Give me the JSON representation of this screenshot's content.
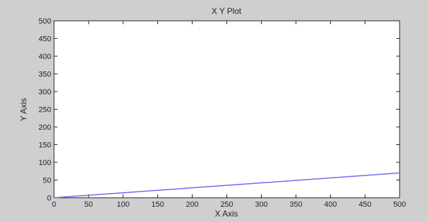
{
  "chart_data": {
    "type": "line",
    "title": "X Y Plot",
    "xlabel": "X Axis",
    "ylabel": "Y Axis",
    "xlim": [
      0,
      500
    ],
    "ylim": [
      0,
      500
    ],
    "xticks": [
      0,
      50,
      100,
      150,
      200,
      250,
      300,
      350,
      400,
      450,
      500
    ],
    "yticks": [
      0,
      50,
      100,
      150,
      200,
      250,
      300,
      350,
      400,
      450,
      500
    ],
    "grid": false,
    "series": [
      {
        "x": [
          0,
          500
        ],
        "y": [
          0,
          70
        ],
        "color": "#6b6bf0"
      }
    ]
  },
  "colors": {
    "figure_background": "#cfcfcf",
    "plot_background": "#ffffff",
    "axis": "#222222"
  }
}
